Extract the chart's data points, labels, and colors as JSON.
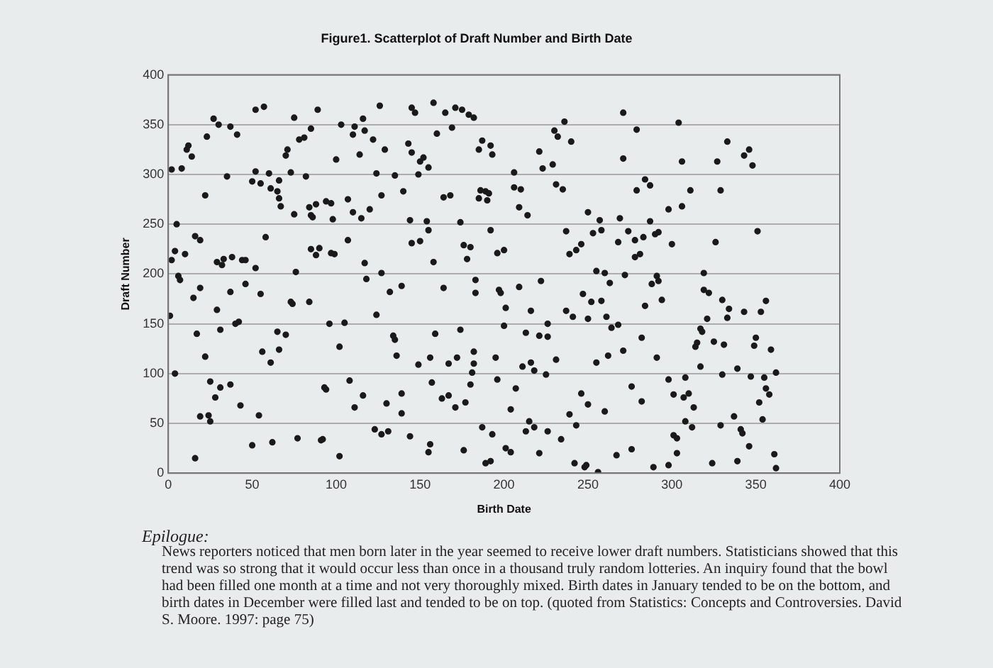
{
  "chart_data": {
    "type": "scatter",
    "title": "Figure1. Scatterplot of Draft Number and Birth Date",
    "xlabel": "Birth Date",
    "ylabel": "Draft Number",
    "annotations": [
      "Epilogue:",
      "News reporters noticed that men born later in the year seemed to receive lower draft numbers. Statisticians showed that this trend was so strong that it would occur less than once in a thousand truly random lotteries. An inquiry found that the bowl had been filled one month at a time and not very thoroughly mixed. Birth dates in January tended to be on the bottom, and birth dates in December were filled last and tended to be on top. (quoted from Statistics: Concepts and Controversies. David S. Moore. 1997: page 75)"
    ],
    "xlim": [
      0,
      400
    ],
    "xticks": [
      0,
      50,
      100,
      150,
      200,
      250,
      300,
      350,
      400
    ],
    "ylim": [
      0,
      400
    ],
    "yticks": [
      0,
      50,
      100,
      150,
      200,
      250,
      300,
      350,
      400
    ],
    "grid": "y",
    "marker": "circle",
    "series": [
      {
        "color": "#1a1a1a",
        "x": [
          2,
          5,
          8,
          11,
          12,
          14,
          16,
          19,
          22,
          23,
          27,
          30,
          35,
          37,
          41,
          50,
          52,
          52,
          55,
          57,
          58,
          60,
          61,
          65,
          66,
          67,
          66,
          70,
          71,
          73,
          75,
          75,
          78,
          81,
          82,
          84,
          85,
          86,
          85,
          88,
          89,
          90,
          94,
          97,
          98,
          100,
          103,
          107,
          107,
          110,
          110,
          111,
          114,
          115,
          116,
          117,
          120,
          122,
          124,
          126,
          127,
          129,
          135,
          140,
          144,
          143,
          145,
          145,
          147,
          149,
          150,
          152,
          154,
          155,
          155,
          158,
          160,
          165,
          164,
          169,
          168,
          171,
          174,
          175,
          180,
          179,
          182,
          186,
          187,
          189,
          185,
          192,
          193,
          185,
          190,
          191,
          192,
          200,
          206,
          206,
          210,
          209,
          214,
          221,
          223,
          229,
          230,
          232,
          236,
          240,
          231,
          235,
          237,
          243,
          246,
          250,
          253,
          257,
          258,
          268,
          269,
          271,
          271,
          274,
          278,
          279,
          279,
          281,
          283,
          284,
          287,
          287,
          290,
          292,
          298,
          300,
          304,
          306,
          306,
          311,
          326,
          327,
          329,
          333,
          343,
          346,
          348,
          351,
          1,
          2,
          4,
          6,
          7,
          4,
          10,
          17,
          15,
          16,
          19,
          19,
          22,
          24,
          25,
          25,
          28,
          31,
          31,
          29,
          29,
          32,
          33,
          37,
          38,
          37,
          40,
          42,
          43,
          44,
          46,
          46,
          50,
          52,
          54,
          55,
          56,
          61,
          62,
          65,
          66,
          70,
          73,
          74,
          76,
          77,
          84,
          85,
          88,
          91,
          92,
          93,
          94,
          96,
          97,
          99,
          102,
          102,
          105,
          108,
          111,
          116,
          117,
          118,
          123,
          124,
          127,
          127,
          131,
          130,
          132,
          134,
          135,
          136,
          139,
          139,
          139,
          144,
          145,
          149,
          150,
          155,
          156,
          156,
          157,
          158,
          159,
          163,
          164,
          167,
          167,
          171,
          172,
          174,
          176,
          176,
          177,
          178,
          181,
          182,
          183,
          183,
          196,
          197,
          198,
          201,
          200,
          209,
          216,
          222,
          213,
          221,
          226,
          226,
          237,
          239,
          241,
          247,
          250,
          252,
          255,
          258,
          260,
          261,
          263,
          264,
          268,
          272,
          278,
          282,
          284,
          288,
          291,
          292,
          294,
          291,
          319,
          319,
          322,
          321,
          330,
          334,
          333,
          343,
          353,
          356,
          317,
          318,
          314,
          315,
          325,
          331,
          349,
          350,
          359,
          317,
          339,
          330,
          347,
          355,
          362,
          356,
          358,
          352,
          354,
          337,
          341,
          342,
          346,
          361,
          362,
          339,
          324,
          329,
          308,
          301,
          307,
          310,
          313,
          308,
          312,
          301,
          303,
          303,
          298,
          289,
          276,
          267,
          276,
          282,
          298,
          271,
          262,
          255,
          246,
          250,
          260,
          243,
          239,
          231,
          225,
          218,
          216,
          211,
          195,
          182,
          180,
          196,
          207,
          204,
          215,
          218,
          213,
          226,
          234,
          187,
          193,
          201,
          204,
          221,
          189,
          192,
          242,
          248,
          249,
          256
        ],
        "values": [
          305,
          250,
          306,
          325,
          329,
          318,
          238,
          234,
          279,
          338,
          356,
          350,
          298,
          348,
          340,
          293,
          365,
          303,
          291,
          368,
          237,
          301,
          286,
          283,
          294,
          268,
          276,
          319,
          325,
          302,
          357,
          260,
          335,
          337,
          298,
          267,
          259,
          257,
          346,
          270,
          365,
          226,
          273,
          271,
          255,
          315,
          350,
          275,
          234,
          340,
          262,
          348,
          320,
          256,
          356,
          344,
          265,
          335,
          301,
          369,
          279,
          325,
          299,
          283,
          254,
          331,
          322,
          367,
          362,
          300,
          313,
          317,
          253,
          307,
          244,
          372,
          341,
          362,
          277,
          347,
          279,
          367,
          252,
          365,
          227,
          360,
          357,
          284,
          334,
          283,
          325,
          329,
          320,
          276,
          274,
          281,
          244,
          224,
          302,
          287,
          285,
          267,
          259,
          323,
          306,
          310,
          344,
          338,
          353,
          333,
          290,
          285,
          243,
          224,
          230,
          262,
          241,
          254,
          244,
          232,
          256,
          362,
          316,
          243,
          234,
          284,
          345,
          220,
          237,
          295,
          289,
          253,
          240,
          242,
          265,
          230,
          352,
          268,
          313,
          284,
          232,
          313,
          284,
          333,
          319,
          325,
          309,
          243,
          158,
          214,
          223,
          198,
          194,
          100,
          220,
          140,
          176,
          15,
          186,
          57,
          117,
          58,
          52,
          92,
          76,
          86,
          144,
          164,
          212,
          209,
          215,
          182,
          217,
          89,
          150,
          152,
          68,
          214,
          214,
          190,
          28,
          206,
          58,
          180,
          122,
          111,
          31,
          142,
          124,
          139,
          172,
          170,
          202,
          35,
          172,
          225,
          219,
          33,
          34,
          86,
          84,
          150,
          221,
          220,
          127,
          17,
          151,
          93,
          66,
          78,
          211,
          195,
          44,
          159,
          201,
          39,
          42,
          70,
          182,
          138,
          134,
          118,
          60,
          80,
          188,
          37,
          231,
          109,
          233,
          21,
          29,
          116,
          91,
          212,
          140,
          75,
          186,
          78,
          110,
          66,
          116,
          144,
          229,
          23,
          71,
          215,
          101,
          122,
          194,
          181,
          221,
          184,
          181,
          166,
          148,
          187,
          163,
          193,
          141,
          138,
          150,
          137,
          163,
          220,
          157,
          180,
          155,
          172,
          203,
          173,
          201,
          157,
          191,
          146,
          149,
          199,
          217,
          136,
          168,
          190,
          198,
          193,
          174,
          116,
          201,
          184,
          181,
          155,
          174,
          165,
          156,
          162,
          162,
          173,
          145,
          142,
          127,
          131,
          132,
          129,
          128,
          136,
          124,
          107,
          105,
          99,
          97,
          96,
          101,
          85,
          79,
          71,
          54,
          57,
          44,
          40,
          27,
          19,
          5,
          12,
          10,
          48,
          96,
          79,
          76,
          80,
          66,
          52,
          46,
          38,
          35,
          20,
          8,
          6,
          24,
          18,
          87,
          72,
          94,
          123,
          118,
          111,
          80,
          69,
          62,
          48,
          59,
          114,
          99,
          103,
          111,
          107,
          116,
          110,
          89,
          94,
          85,
          64,
          52,
          46,
          42,
          42,
          34,
          46,
          39,
          25,
          21,
          20,
          10,
          12,
          10,
          6,
          8,
          1
        ]
      }
    ]
  }
}
